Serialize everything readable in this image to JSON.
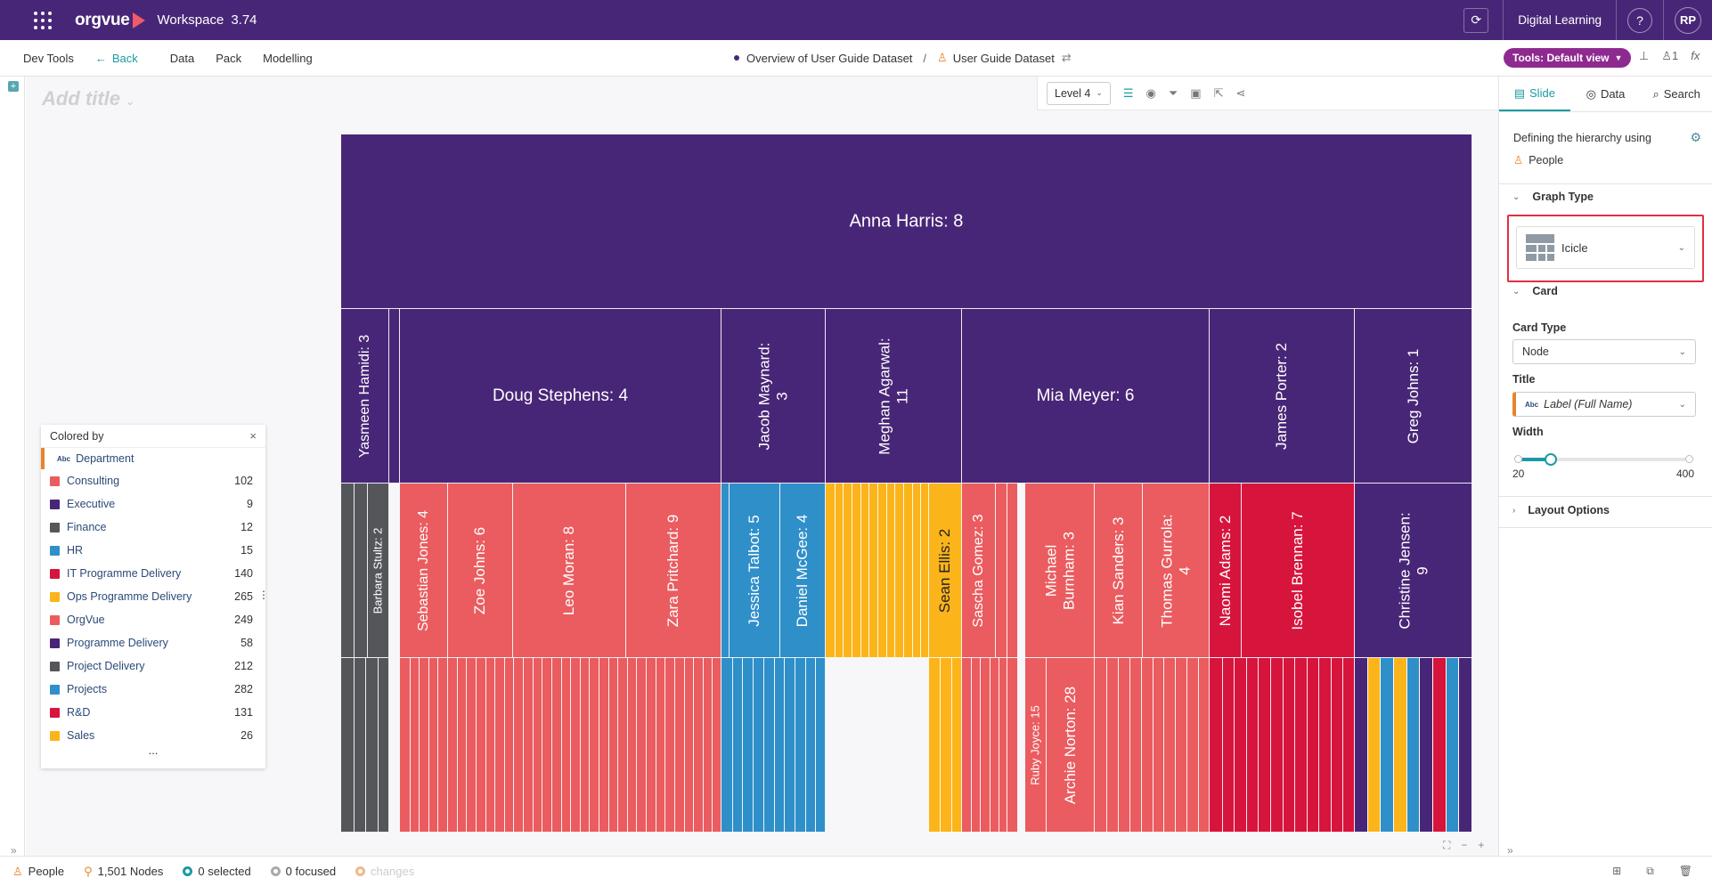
{
  "topbar": {
    "brand": "orgvue",
    "workspace": "Workspace",
    "version": "3.74",
    "tenant": "Digital Learning",
    "help": "?",
    "avatar": "RP",
    "brand_color": "#482677"
  },
  "menubar": {
    "dev_tools": "Dev Tools",
    "back": "Back",
    "items": [
      "Data",
      "Pack",
      "Modelling"
    ],
    "breadcrumb_view": "Overview of User Guide Dataset",
    "breadcrumb_sep": "/",
    "breadcrumb_dataset": "User Guide Dataset",
    "tools_pill": "Tools: Default view",
    "user_count": "1",
    "fx": "fx"
  },
  "canvas": {
    "add_title": "Add title",
    "level_select": "Level 4"
  },
  "legend": {
    "title": "Colored by",
    "field_type": "Abc",
    "field": "Department",
    "items": [
      {
        "label": "Consulting",
        "count": "102",
        "color": "#ea5c5f"
      },
      {
        "label": "Executive",
        "count": "9",
        "color": "#482677"
      },
      {
        "label": "Finance",
        "count": "12",
        "color": "#54565a"
      },
      {
        "label": "HR",
        "count": "15",
        "color": "#2f8fc9"
      },
      {
        "label": "IT Programme Delivery",
        "count": "140",
        "color": "#d7143c"
      },
      {
        "label": "Ops Programme Delivery",
        "count": "265",
        "color": "#fbb41a"
      },
      {
        "label": "OrgVue",
        "count": "249",
        "color": "#ea5c5f"
      },
      {
        "label": "Programme Delivery",
        "count": "58",
        "color": "#482677"
      },
      {
        "label": "Project Delivery",
        "count": "212",
        "color": "#54565a"
      },
      {
        "label": "Projects",
        "count": "282",
        "color": "#2f8fc9"
      },
      {
        "label": "R&D",
        "count": "131",
        "color": "#d7143c"
      },
      {
        "label": "Sales",
        "count": "26",
        "color": "#fbb41a"
      }
    ],
    "more": "..."
  },
  "icicle": {
    "colors": {
      "purple": "#482677",
      "grey": "#54565a",
      "red": "#ea5c5f",
      "blue": "#2f8fc9",
      "crimson": "#d7143c",
      "yellow": "#fbb41a",
      "white": "#ffffff"
    },
    "nodes": [
      {
        "label": "Anna Harris: 8",
        "level": 0,
        "start": 0,
        "end": 1,
        "color": "purple",
        "orient": "h",
        "size": 20
      },
      {
        "label": "Yasmeen Hamidi: 3",
        "level": 1,
        "start": 0,
        "end": 0.0426,
        "color": "purple",
        "orient": "v",
        "size": 16
      },
      {
        "label": "",
        "level": 1,
        "start": 0.0426,
        "end": 0.052,
        "color": "purple"
      },
      {
        "label": "Doug Stephens: 4",
        "level": 1,
        "start": 0.052,
        "end": 0.3361,
        "color": "purple",
        "orient": "h",
        "size": 19
      },
      {
        "label": "Jacob Maynard:\n3",
        "level": 1,
        "start": 0.3361,
        "end": 0.4283,
        "color": "purple",
        "orient": "v",
        "size": 17
      },
      {
        "label": "Meghan Agarwal:\n11",
        "level": 1,
        "start": 0.4283,
        "end": 0.5488,
        "color": "purple",
        "orient": "v",
        "size": 17
      },
      {
        "label": "Mia Meyer: 6",
        "level": 1,
        "start": 0.5488,
        "end": 0.7677,
        "color": "purple",
        "orient": "h",
        "size": 19
      },
      {
        "label": "James Porter: 2",
        "level": 1,
        "start": 0.7677,
        "end": 0.8961,
        "color": "purple",
        "orient": "v",
        "size": 17
      },
      {
        "label": "Greg Johns: 1",
        "level": 1,
        "start": 0.8961,
        "end": 1,
        "color": "purple",
        "orient": "v",
        "size": 17
      },
      {
        "label": "",
        "level": 2,
        "start": 0,
        "end": 0.0118,
        "color": "grey"
      },
      {
        "label": "",
        "level": 2,
        "start": 0.0118,
        "end": 0.0236,
        "color": "grey"
      },
      {
        "label": "Barbara Stultz: 2",
        "level": 2,
        "start": 0.0236,
        "end": 0.0426,
        "color": "grey",
        "orient": "v",
        "size": 13
      },
      {
        "label": "Sebastian Jones: 4",
        "level": 2,
        "start": 0.052,
        "end": 0.0946,
        "color": "red",
        "orient": "v",
        "size": 16
      },
      {
        "label": "Zoe Johns: 6",
        "level": 2,
        "start": 0.0946,
        "end": 0.1522,
        "color": "red",
        "orient": "v",
        "size": 17
      },
      {
        "label": "Leo Moran: 8",
        "level": 2,
        "start": 0.1522,
        "end": 0.2522,
        "color": "red",
        "orient": "v",
        "size": 17
      },
      {
        "label": "Zara Pritchard: 9",
        "level": 2,
        "start": 0.2522,
        "end": 0.3361,
        "color": "red",
        "orient": "v",
        "size": 17
      },
      {
        "label": "",
        "level": 2,
        "start": 0.3361,
        "end": 0.3431,
        "color": "blue"
      },
      {
        "label": "Jessica Talbot: 5",
        "level": 2,
        "start": 0.3431,
        "end": 0.388,
        "color": "blue",
        "orient": "v",
        "size": 17
      },
      {
        "label": "Daniel McGee: 4",
        "level": 2,
        "start": 0.388,
        "end": 0.4283,
        "color": "blue",
        "orient": "v",
        "size": 17
      },
      {
        "label": "",
        "level": 2,
        "start": 0.4283,
        "end": 0.5193,
        "color": "yellow",
        "stripes": 12
      },
      {
        "label": "Sean Ellis: 2",
        "level": 2,
        "start": 0.5193,
        "end": 0.5488,
        "color": "yellow",
        "orient": "v",
        "dark": true,
        "size": 17
      },
      {
        "label": "Sascha Gomez: 3",
        "level": 2,
        "start": 0.5488,
        "end": 0.5785,
        "color": "red",
        "orient": "v",
        "size": 16
      },
      {
        "label": "",
        "level": 2,
        "start": 0.5785,
        "end": 0.5889,
        "color": "red"
      },
      {
        "label": "",
        "level": 2,
        "start": 0.5889,
        "end": 0.5986,
        "color": "red"
      },
      {
        "label": "Michael\nBurnham: 3",
        "level": 2,
        "start": 0.605,
        "end": 0.6658,
        "color": "red",
        "orient": "v",
        "size": 17
      },
      {
        "label": "Kian Sanders: 3",
        "level": 2,
        "start": 0.6658,
        "end": 0.7086,
        "color": "red",
        "orient": "v",
        "size": 17
      },
      {
        "label": "Thomas Gurrola:\n4",
        "level": 2,
        "start": 0.7086,
        "end": 0.7677,
        "color": "red",
        "orient": "v",
        "size": 17
      },
      {
        "label": "Naomi Adams: 2",
        "level": 2,
        "start": 0.7677,
        "end": 0.796,
        "color": "crimson",
        "orient": "v",
        "size": 17
      },
      {
        "label": "Isobel Brennan: 7",
        "level": 2,
        "start": 0.796,
        "end": 0.8961,
        "color": "crimson",
        "orient": "v",
        "size": 17
      },
      {
        "label": "Christine Jensen:\n9",
        "level": 2,
        "start": 0.8961,
        "end": 1,
        "color": "purple",
        "orient": "v",
        "size": 17
      },
      {
        "label": "",
        "level": 3,
        "start": 0,
        "end": 0.0426,
        "color": "grey",
        "stripes": 4
      },
      {
        "label": "",
        "level": 3,
        "start": 0.052,
        "end": 0.3361,
        "color": "red",
        "stripes": 34
      },
      {
        "label": "",
        "level": 3,
        "start": 0.3361,
        "end": 0.4283,
        "color": "blue",
        "stripes": 10
      },
      {
        "label": "",
        "level": 3,
        "start": 0.5193,
        "end": 0.5488,
        "color": "yellow",
        "stripes": 3
      },
      {
        "label": "",
        "level": 3,
        "start": 0.5488,
        "end": 0.5889,
        "color": "red",
        "stripes": 5
      },
      {
        "label": "",
        "level": 3,
        "start": 0.5889,
        "end": 0.5986,
        "color": "red"
      },
      {
        "label": "Ruby Joyce: 15",
        "level": 3,
        "start": 0.605,
        "end": 0.624,
        "color": "red",
        "orient": "v",
        "size": 13
      },
      {
        "label": "Archie Norton: 28",
        "level": 3,
        "start": 0.624,
        "end": 0.6658,
        "color": "red",
        "orient": "v",
        "size": 17
      },
      {
        "label": "",
        "level": 3,
        "start": 0.6658,
        "end": 0.7677,
        "color": "red",
        "stripes": 10
      },
      {
        "label": "",
        "level": 3,
        "start": 0.7677,
        "end": 0.8961,
        "color": "crimson",
        "stripes": 12
      },
      {
        "label": "",
        "level": 3,
        "start": 0.8961,
        "end": 1,
        "colors": [
          "purple",
          "yellow",
          "blue",
          "yellow",
          "blue",
          "purple",
          "crimson",
          "blue",
          "purple"
        ]
      }
    ]
  },
  "sidepanel": {
    "tab_slide": "Slide",
    "tab_data": "Data",
    "tab_search": "Search",
    "defining": "Defining the hierarchy using",
    "hierarchy": "People",
    "graph_type_section": "Graph Type",
    "graph_type_value": "Icicle",
    "card_section": "Card",
    "card_type_label": "Card Type",
    "card_type_value": "Node",
    "title_label": "Title",
    "title_type": "Abc",
    "title_value": "Label (Full Name)",
    "width_label": "Width",
    "width_min": "20",
    "width_max": "400",
    "width_value_fraction": 0.195,
    "layout_section": "Layout Options"
  },
  "status": {
    "dataset": "People",
    "nodes": "1,501 Nodes",
    "selected": "0 selected",
    "focused": "0 focused",
    "changes": "changes"
  }
}
